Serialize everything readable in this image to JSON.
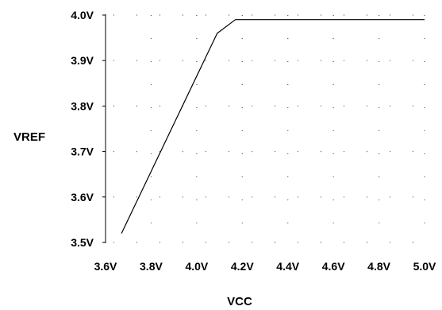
{
  "chart_data": {
    "type": "line",
    "title": "",
    "xlabel": "VCC",
    "ylabel": "VREF",
    "xlim": [
      3.6,
      5.0
    ],
    "ylim": [
      3.5,
      4.0
    ],
    "x_ticks": [
      3.6,
      3.8,
      4.0,
      4.2,
      4.4,
      4.6,
      4.8,
      5.0
    ],
    "x_tick_labels": [
      "3.6V",
      "3.8V",
      "4.0V",
      "4.2V",
      "4.4V",
      "4.6V",
      "4.8V",
      "5.0V"
    ],
    "y_ticks": [
      3.5,
      3.6,
      3.7,
      3.8,
      3.9,
      4.0
    ],
    "y_tick_labels": [
      "3.5V",
      "3.6V",
      "3.7V",
      "3.8V",
      "3.9V",
      "4.0V"
    ],
    "grid": "dotted",
    "legend": "none",
    "series": [
      {
        "x": [
          3.67,
          4.09,
          4.17,
          5.0
        ],
        "y": [
          3.52,
          3.96,
          3.99,
          3.99
        ],
        "color": "#000000"
      }
    ]
  }
}
